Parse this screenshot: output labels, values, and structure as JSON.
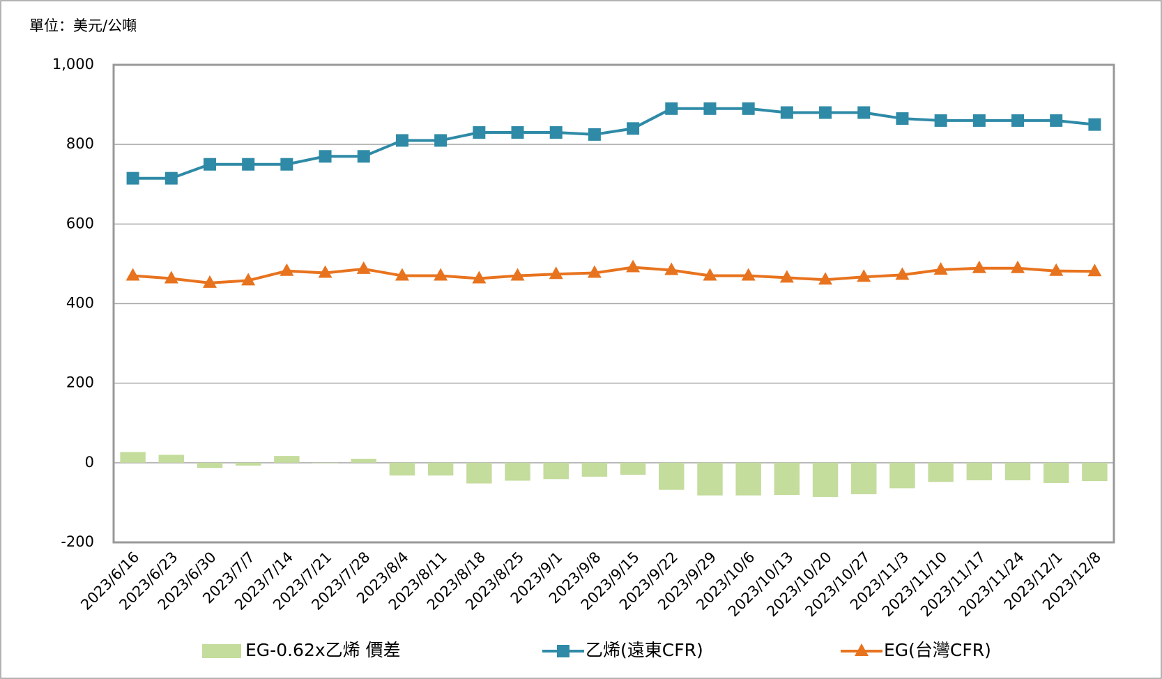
{
  "chart_data": {
    "type": "bar-line",
    "unit_label": "單位：美元/公噸",
    "categories": [
      "2023/6/16",
      "2023/6/23",
      "2023/6/30",
      "2023/7/7",
      "2023/7/14",
      "2023/7/21",
      "2023/7/28",
      "2023/8/4",
      "2023/8/11",
      "2023/8/18",
      "2023/8/25",
      "2023/9/1",
      "2023/9/8",
      "2023/9/15",
      "2023/9/22",
      "2023/9/29",
      "2023/10/6",
      "2023/10/13",
      "2023/10/20",
      "2023/10/27",
      "2023/11/3",
      "2023/11/10",
      "2023/11/17",
      "2023/11/24",
      "2023/12/1",
      "2023/12/8"
    ],
    "series": [
      {
        "name": "EG-0.62x乙烯 價差",
        "type": "bar",
        "color": "#c4dc9c",
        "values": [
          27,
          20,
          -13,
          -7,
          17,
          -1,
          10,
          -32,
          -32,
          -52,
          -45,
          -41,
          -35,
          -30,
          -68,
          -82,
          -82,
          -81,
          -86,
          -79,
          -64,
          -48,
          -44,
          -44,
          -51,
          -46
        ]
      },
      {
        "name": "乙烯(遠東CFR)",
        "type": "line",
        "marker": "square",
        "color": "#2e8aa6",
        "values": [
          715,
          715,
          750,
          750,
          750,
          770,
          770,
          810,
          810,
          830,
          830,
          830,
          825,
          840,
          890,
          890,
          890,
          880,
          880,
          880,
          865,
          860,
          860,
          860,
          860,
          850
        ]
      },
      {
        "name": "EG(台灣CFR)",
        "type": "line",
        "marker": "triangle",
        "color": "#e8731e",
        "values": [
          470,
          463,
          452,
          458,
          482,
          477,
          487,
          470,
          470,
          463,
          470,
          474,
          477,
          491,
          484,
          470,
          470,
          465,
          460,
          467,
          472,
          485,
          489,
          489,
          482,
          481
        ]
      }
    ],
    "ylim": [
      -200,
      1000
    ],
    "yticks": [
      {
        "value": 1000,
        "label": "1,000"
      },
      800,
      600,
      400,
      200,
      0,
      -200
    ],
    "grid": true
  }
}
